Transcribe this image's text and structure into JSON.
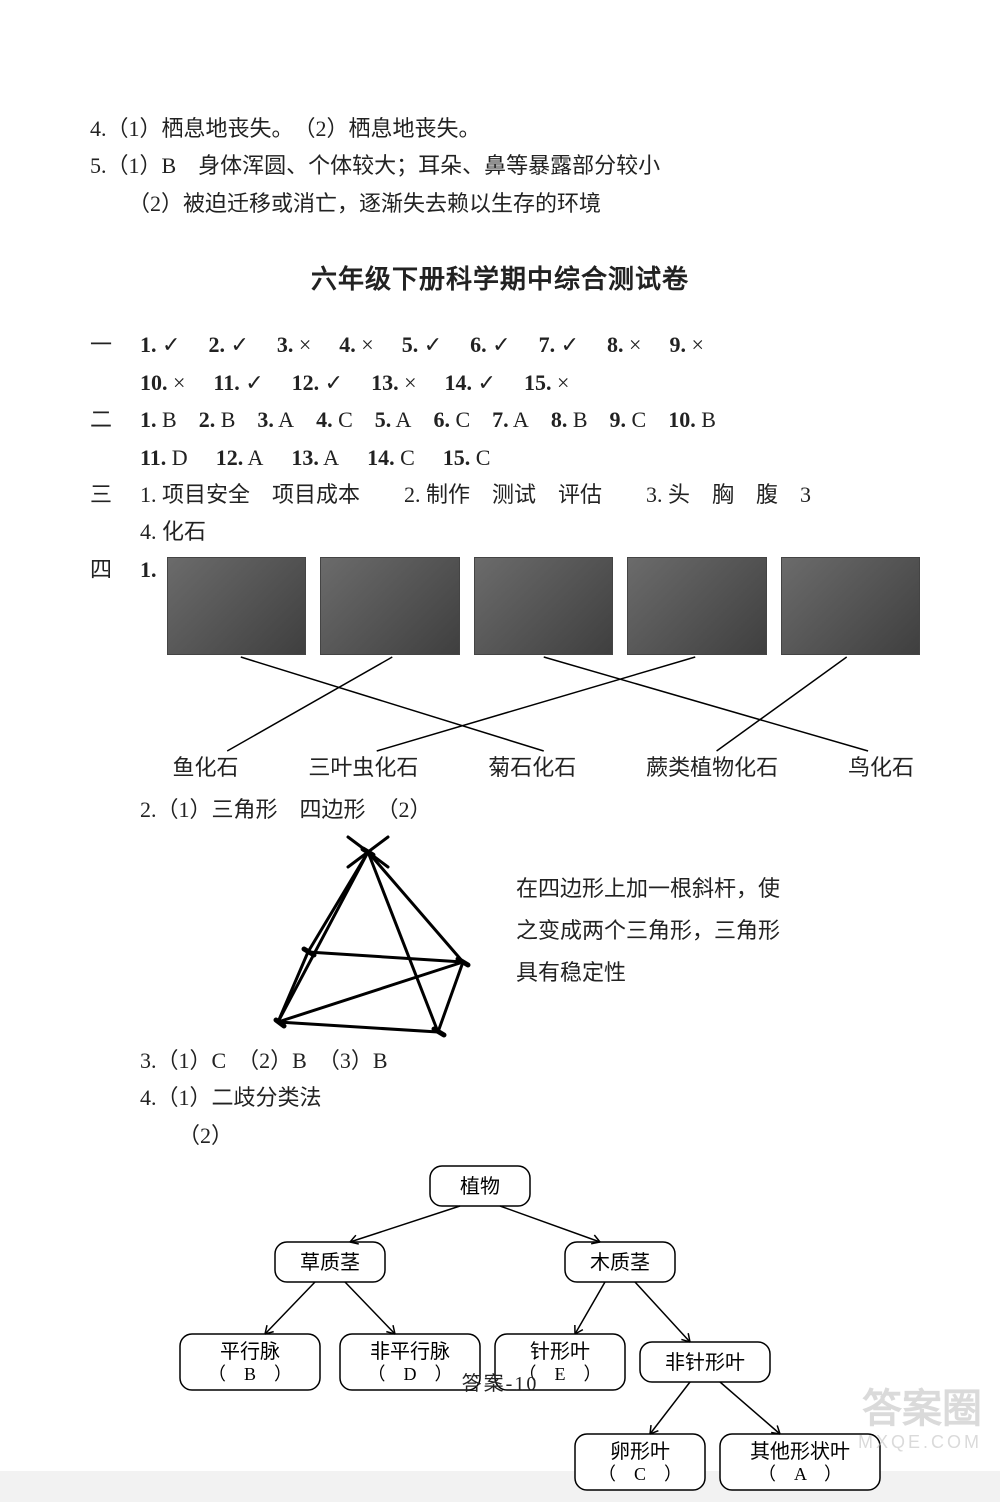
{
  "top": {
    "q4": "4.（1）栖息地丧失。　（2）栖息地丧失。",
    "q5a": "5.（1）B　身体浑圆、个体较大；耳朵、鼻等暴露部分较小",
    "q5b": "（2）被迫迁移或消亡，逐渐失去赖以生存的环境"
  },
  "title": "六年级下册科学期中综合测试卷",
  "sec1_label": "一",
  "sec1": {
    "row1": [
      "1. ✓",
      "2. ✓",
      "3. ×",
      "4. ×",
      "5. ✓",
      "6. ✓",
      "7. ✓",
      "8. ×",
      "9. ×"
    ],
    "row2": [
      "10. ×",
      "11. ✓",
      "12. ✓",
      "13. ×",
      "14. ✓",
      "15. ×"
    ]
  },
  "sec2_label": "二",
  "sec2": {
    "row1": [
      "1. B",
      "2. B",
      "3. A",
      "4. C",
      "5. A",
      "6. C",
      "7. A",
      "8. B",
      "9. C",
      "10. B"
    ],
    "row2": [
      "11. D",
      "12. A",
      "13. A",
      "14. C",
      "15. C"
    ]
  },
  "sec3_label": "三",
  "sec3": {
    "line1": "1. 项目安全　项目成本　　2. 制作　测试　评估　　3. 头　胸　腹　3",
    "line2": "4. 化石"
  },
  "sec4_label": "四",
  "sec4": {
    "q1_label": "1.",
    "fossil_labels": [
      "鱼化石",
      "三叶虫化石",
      "菊石化石",
      "蕨类植物化石",
      "鸟化石"
    ],
    "match_lines": {
      "tops": [
        76,
        232,
        388,
        544,
        700
      ],
      "bottoms": [
        62,
        216,
        388,
        566,
        722
      ],
      "edges": [
        [
          0,
          2
        ],
        [
          1,
          0
        ],
        [
          2,
          4
        ],
        [
          3,
          1
        ],
        [
          4,
          3
        ]
      ]
    },
    "q2_line": "2.（1）三角形　四边形　（2）",
    "q2_note1": "在四边形上加一根斜杆，使",
    "q2_note2": "之变成两个三角形，三角形",
    "q2_note3": "具有稳定性",
    "q3_line": "3.（1）C　（2）B　（3）B",
    "q4_line1": "4.（1）二歧分类法",
    "q4_line2": "（2）"
  },
  "tree": {
    "root": "植物",
    "l2": [
      "草质茎",
      "木质茎"
    ],
    "l3": [
      {
        "t1": "平行脉",
        "t2": "（　B　）"
      },
      {
        "t1": "非平行脉",
        "t2": "（　D　）"
      },
      {
        "t1": "针形叶",
        "t2": "（　E　）"
      },
      {
        "t1": "非针形叶",
        "t2": ""
      }
    ],
    "l4": [
      {
        "t1": "卵形叶",
        "t2": "（　C　）"
      },
      {
        "t1": "其他形状叶",
        "t2": "（　A　）"
      }
    ]
  },
  "footer": "答案-10",
  "watermark": {
    "line1": "答案圈",
    "line2": "MXQE.COM"
  },
  "colors": {
    "page_bg": "#ffffff",
    "text": "#222222",
    "fossil_dark": "#3f3f3f",
    "fossil_light": "#6b6b6b",
    "watermark": "#bdbdbd"
  }
}
